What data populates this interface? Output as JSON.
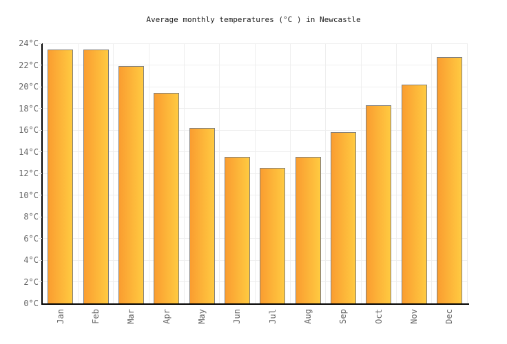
{
  "chart_data": {
    "type": "bar",
    "title": "Average monthly temperatures (°C ) in Newcastle",
    "categories": [
      "Jan",
      "Feb",
      "Mar",
      "Apr",
      "May",
      "Jun",
      "Jul",
      "Aug",
      "Sep",
      "Oct",
      "Nov",
      "Dec"
    ],
    "values": [
      23.4,
      23.4,
      21.9,
      19.4,
      16.2,
      13.5,
      12.5,
      13.5,
      15.8,
      18.3,
      20.2,
      22.7
    ],
    "unit": "°C",
    "xlabel": "",
    "ylabel": "",
    "ylim": [
      0,
      24
    ],
    "y_tick_step": 2,
    "y_tick_labels": [
      "0°C",
      "2°C",
      "4°C",
      "6°C",
      "8°C",
      "10°C",
      "12°C",
      "14°C",
      "16°C",
      "18°C",
      "20°C",
      "22°C",
      "24°C"
    ],
    "grid": "horizontal and vertical light gray lines",
    "legend": "none",
    "colors": {
      "bar_gradient_left": "#fa9d30",
      "bar_gradient_right": "#ffca41",
      "bar_border": "#7e7e7e",
      "axis": "#000000",
      "gridline": "#eeeeee",
      "tick": "#dddddd",
      "tick_label": "#666666",
      "title": "#1a1a1a",
      "background": "#ffffff"
    }
  }
}
